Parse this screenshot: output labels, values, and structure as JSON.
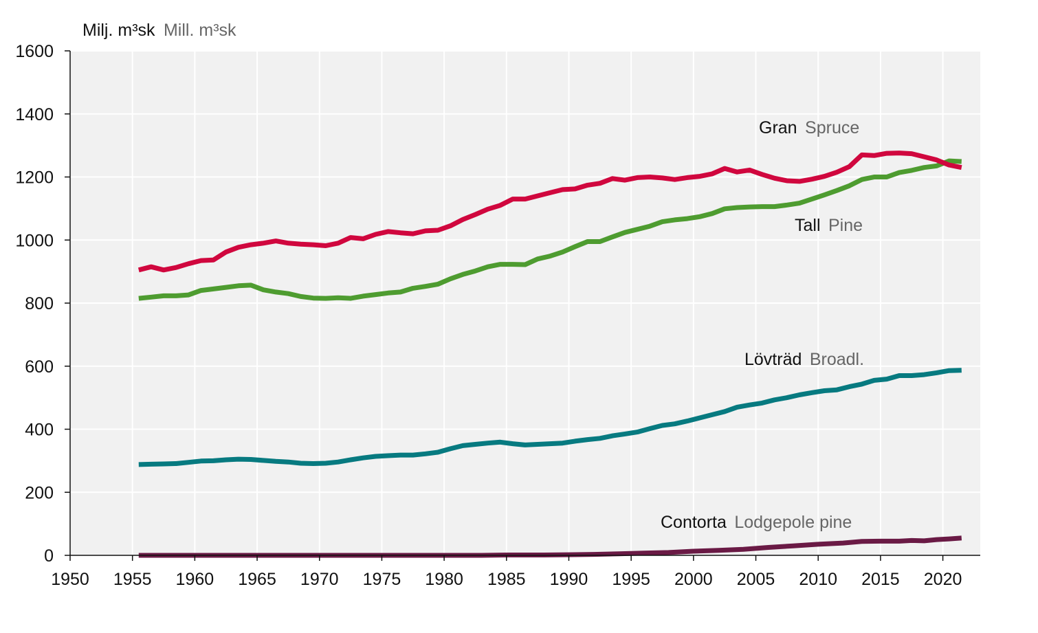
{
  "chart_data": {
    "type": "line",
    "ylabel": {
      "main": "Milj. m³sk",
      "sub": "Mill. m³sk"
    },
    "xlim": [
      1950,
      2023
    ],
    "ylim": [
      0,
      1600
    ],
    "xticks": [
      1950,
      1955,
      1960,
      1965,
      1970,
      1975,
      1980,
      1985,
      1990,
      1995,
      2000,
      2005,
      2010,
      2015,
      2020
    ],
    "yticks": [
      0,
      200,
      400,
      600,
      800,
      1000,
      1200,
      1400,
      1600
    ],
    "grid": true,
    "background": "#f1f1f1",
    "series": [
      {
        "key": "gran",
        "name": "Gran",
        "name_en": "Spruce",
        "color": "#d0073e",
        "x": [
          1955.5,
          1956.5,
          1957.5,
          1958.5,
          1959.5,
          1960.5,
          1961.5,
          1962.5,
          1963.5,
          1964.5,
          1965.5,
          1966.5,
          1967.5,
          1968.5,
          1969.5,
          1970.5,
          1971.5,
          1972.5,
          1973.5,
          1974.5,
          1975.5,
          1976.5,
          1977.5,
          1978.5,
          1979.5,
          1980.5,
          1981.5,
          1982.5,
          1983.5,
          1984.5,
          1985.5,
          1986.5,
          1987.5,
          1988.5,
          1989.5,
          1990.5,
          1991.5,
          1992.5,
          1993.5,
          1994.5,
          1995.5,
          1996.5,
          1997.5,
          1998.5,
          1999.5,
          2000.5,
          2001.5,
          2002.5,
          2003.5,
          2004.5,
          2005.5,
          2006.5,
          2007.5,
          2008.5,
          2009.5,
          2010.5,
          2011.5,
          2012.5,
          2013.5,
          2014.5,
          2015.5,
          2016.5,
          2017.5,
          2018.5,
          2019.5,
          2020.5,
          2021.5
        ],
        "y": [
          905,
          915,
          905,
          913,
          925,
          935,
          937,
          962,
          977,
          985,
          990,
          997,
          990,
          987,
          985,
          982,
          990,
          1008,
          1004,
          1018,
          1027,
          1023,
          1020,
          1029,
          1031,
          1045,
          1065,
          1081,
          1098,
          1110,
          1130,
          1130,
          1140,
          1150,
          1160,
          1162,
          1174,
          1180,
          1195,
          1190,
          1198,
          1200,
          1197,
          1192,
          1198,
          1202,
          1210,
          1227,
          1216,
          1222,
          1208,
          1196,
          1188,
          1186,
          1193,
          1202,
          1215,
          1233,
          1270,
          1268,
          1275,
          1276,
          1274,
          1264,
          1254,
          1238,
          1230
        ]
      },
      {
        "key": "tall",
        "name": "Tall",
        "name_en": "Pine",
        "color": "#4e9c30",
        "x": [
          1955.5,
          1956.5,
          1957.5,
          1958.5,
          1959.5,
          1960.5,
          1961.5,
          1962.5,
          1963.5,
          1964.5,
          1965.5,
          1966.5,
          1967.5,
          1968.5,
          1969.5,
          1970.5,
          1971.5,
          1972.5,
          1973.5,
          1974.5,
          1975.5,
          1976.5,
          1977.5,
          1978.5,
          1979.5,
          1980.5,
          1981.5,
          1982.5,
          1983.5,
          1984.5,
          1985.5,
          1986.5,
          1987.5,
          1988.5,
          1989.5,
          1990.5,
          1991.5,
          1992.5,
          1993.5,
          1994.5,
          1995.5,
          1996.5,
          1997.5,
          1998.5,
          1999.5,
          2000.5,
          2001.5,
          2002.5,
          2003.5,
          2004.5,
          2005.5,
          2006.5,
          2007.5,
          2008.5,
          2009.5,
          2010.5,
          2011.5,
          2012.5,
          2013.5,
          2014.5,
          2015.5,
          2016.5,
          2017.5,
          2018.5,
          2019.5,
          2020.5,
          2021.5
        ],
        "y": [
          815,
          819,
          823,
          823,
          826,
          840,
          845,
          850,
          855,
          857,
          842,
          835,
          830,
          821,
          816,
          815,
          817,
          815,
          822,
          827,
          832,
          835,
          847,
          853,
          860,
          877,
          891,
          902,
          915,
          923,
          923,
          922,
          940,
          949,
          962,
          979,
          995,
          995,
          1010,
          1024,
          1034,
          1044,
          1058,
          1064,
          1068,
          1074,
          1084,
          1099,
          1103,
          1105,
          1106,
          1106,
          1111,
          1117,
          1130,
          1143,
          1157,
          1172,
          1192,
          1200,
          1200,
          1214,
          1221,
          1230,
          1235,
          1251,
          1249
        ]
      },
      {
        "key": "lovtrad",
        "name": "Lövträd",
        "name_en": "Broadl.",
        "color": "#077a80",
        "x": [
          1955.5,
          1956.5,
          1957.5,
          1958.5,
          1959.5,
          1960.5,
          1961.5,
          1962.5,
          1963.5,
          1964.5,
          1965.5,
          1966.5,
          1967.5,
          1968.5,
          1969.5,
          1970.5,
          1971.5,
          1972.5,
          1973.5,
          1974.5,
          1975.5,
          1976.5,
          1977.5,
          1978.5,
          1979.5,
          1980.5,
          1981.5,
          1982.5,
          1983.5,
          1984.5,
          1985.5,
          1986.5,
          1987.5,
          1988.5,
          1989.5,
          1990.5,
          1991.5,
          1992.5,
          1993.5,
          1994.5,
          1995.5,
          1996.5,
          1997.5,
          1998.5,
          1999.5,
          2000.5,
          2001.5,
          2002.5,
          2003.5,
          2004.5,
          2005.5,
          2006.5,
          2007.5,
          2008.5,
          2009.5,
          2010.5,
          2011.5,
          2012.5,
          2013.5,
          2014.5,
          2015.5,
          2016.5,
          2017.5,
          2018.5,
          2019.5,
          2020.5,
          2021.5
        ],
        "y": [
          288,
          289,
          290,
          291,
          295,
          299,
          300,
          303,
          305,
          304,
          301,
          298,
          296,
          292,
          291,
          292,
          296,
          303,
          309,
          314,
          316,
          318,
          318,
          322,
          327,
          338,
          348,
          352,
          356,
          359,
          354,
          350,
          352,
          354,
          356,
          362,
          367,
          371,
          379,
          385,
          391,
          402,
          412,
          417,
          426,
          436,
          446,
          456,
          470,
          477,
          483,
          493,
          500,
          509,
          516,
          522,
          525,
          535,
          543,
          555,
          559,
          570,
          570,
          573,
          579,
          586,
          587
        ]
      },
      {
        "key": "contorta",
        "name": "Contorta",
        "name_en": "Lodgepole pine",
        "color": "#6a1a45",
        "x": [
          1955.5,
          1960,
          1965,
          1970,
          1975,
          1980,
          1983,
          1985,
          1988,
          1990,
          1992,
          1994,
          1996,
          1998,
          2000,
          2002,
          2004,
          2006,
          2008,
          2010,
          2012,
          2013.5,
          2015,
          2016.5,
          2017.5,
          2018.5,
          2019.5,
          2020.5,
          2021.5
        ],
        "y": [
          0,
          0,
          0,
          0,
          0,
          0,
          0,
          1,
          1,
          2,
          3,
          5,
          7,
          9,
          13,
          16,
          19,
          25,
          30,
          35,
          39,
          44,
          45,
          45,
          47,
          46,
          50,
          52,
          55
        ]
      }
    ]
  }
}
